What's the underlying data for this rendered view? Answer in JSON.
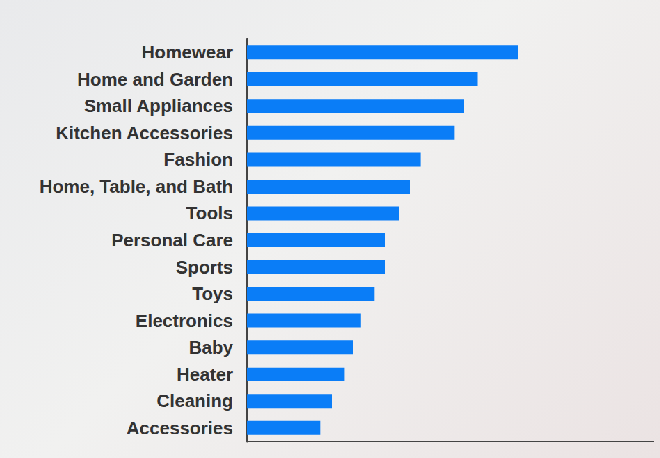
{
  "chart_data": {
    "type": "bar",
    "orientation": "horizontal",
    "categories": [
      "Homewear",
      "Home and Garden",
      "Small Appliances",
      "Kitchen Accessories",
      "Fashion",
      "Home, Table, and Bath",
      "Tools",
      "Personal Care",
      "Sports",
      "Toys",
      "Electronics",
      "Baby",
      "Heater",
      "Cleaning",
      "Accessories"
    ],
    "values": [
      100,
      85,
      80,
      76.5,
      64,
      60,
      56,
      51,
      51,
      47,
      42,
      39,
      36,
      31.5,
      27
    ],
    "color": "#0a7df7",
    "xlim": [
      0,
      150
    ],
    "grid": false,
    "tick_labels": "y"
  }
}
